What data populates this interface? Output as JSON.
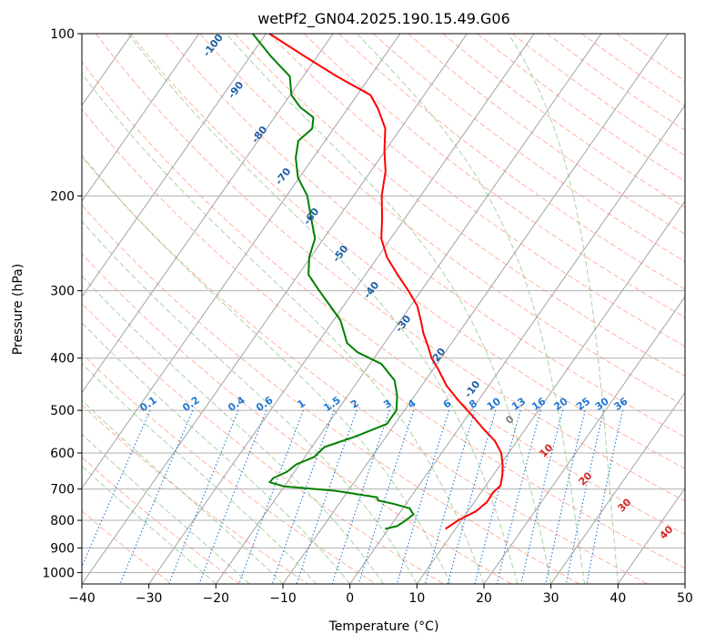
{
  "chart_data": {
    "type": "skew-t",
    "title": "wetPf2_GN04.2025.190.15.49.G06",
    "xlabel": "Temperature (°C)",
    "ylabel": "Pressure (hPa)",
    "xlim": [
      -40,
      50
    ],
    "ylim": [
      1050,
      100
    ],
    "y_scale": "log",
    "grid": true,
    "x_ticks": [
      "−40",
      "−30",
      "−20",
      "−10",
      "0",
      "10",
      "20",
      "30",
      "40",
      "50"
    ],
    "x_tick_values": [
      -40,
      -30,
      -20,
      -10,
      0,
      10,
      20,
      30,
      40,
      50
    ],
    "y_ticks": [
      "100",
      "200",
      "300",
      "400",
      "500",
      "600",
      "700",
      "800",
      "900",
      "1000"
    ],
    "y_tick_values": [
      100,
      200,
      300,
      400,
      500,
      600,
      700,
      800,
      900,
      1000
    ],
    "colors": {
      "temperature": "#ff0000",
      "dewpoint": "#008000",
      "isotherm": "#9a9a9a",
      "dry_adiabat": "#ff9a80",
      "moist_adiabat": "#7fc37f",
      "mixing_ratio": "#1f77d4",
      "lcl_label": "#1f5fa8",
      "theta_label": "#d62728"
    },
    "series": [
      {
        "kind": "temperature",
        "points": [
          {
            "p": 830,
            "t": 8.5
          },
          {
            "p": 800,
            "t": 9.5
          },
          {
            "p": 770,
            "t": 11.2
          },
          {
            "p": 740,
            "t": 11.9
          },
          {
            "p": 710,
            "t": 11.8
          },
          {
            "p": 690,
            "t": 12.2
          },
          {
            "p": 660,
            "t": 11.4
          },
          {
            "p": 630,
            "t": 10.3
          },
          {
            "p": 600,
            "t": 8.9
          },
          {
            "p": 570,
            "t": 6.7
          },
          {
            "p": 540,
            "t": 3.6
          },
          {
            "p": 510,
            "t": 0.5
          },
          {
            "p": 480,
            "t": -2.9
          },
          {
            "p": 450,
            "t": -6.3
          },
          {
            "p": 420,
            "t": -9.2
          },
          {
            "p": 400,
            "t": -11.4
          },
          {
            "p": 380,
            "t": -13.2
          },
          {
            "p": 360,
            "t": -15.2
          },
          {
            "p": 340,
            "t": -17.0
          },
          {
            "p": 320,
            "t": -19.0
          },
          {
            "p": 300,
            "t": -21.9
          },
          {
            "p": 280,
            "t": -25.2
          },
          {
            "p": 260,
            "t": -28.6
          },
          {
            "p": 240,
            "t": -31.4
          },
          {
            "p": 220,
            "t": -33.4
          },
          {
            "p": 200,
            "t": -35.8
          },
          {
            "p": 180,
            "t": -37.8
          },
          {
            "p": 165,
            "t": -40.1
          },
          {
            "p": 150,
            "t": -42.3
          },
          {
            "p": 138,
            "t": -45.4
          },
          {
            "p": 130,
            "t": -48.0
          },
          {
            "p": 120,
            "t": -55.0
          },
          {
            "p": 110,
            "t": -62.0
          },
          {
            "p": 100,
            "t": -69.5
          }
        ]
      },
      {
        "kind": "dewpoint",
        "points": [
          {
            "p": 830,
            "t": -0.5
          },
          {
            "p": 820,
            "t": 1.0
          },
          {
            "p": 800,
            "t": 1.7
          },
          {
            "p": 780,
            "t": 2.2
          },
          {
            "p": 760,
            "t": 1.0
          },
          {
            "p": 745,
            "t": -2.0
          },
          {
            "p": 735,
            "t": -4.5
          },
          {
            "p": 725,
            "t": -5.0
          },
          {
            "p": 705,
            "t": -12.0
          },
          {
            "p": 692,
            "t": -20.0
          },
          {
            "p": 680,
            "t": -22.6
          },
          {
            "p": 668,
            "t": -22.5
          },
          {
            "p": 650,
            "t": -21.1
          },
          {
            "p": 630,
            "t": -20.5
          },
          {
            "p": 610,
            "t": -18.6
          },
          {
            "p": 585,
            "t": -18.1
          },
          {
            "p": 560,
            "t": -14.7
          },
          {
            "p": 530,
            "t": -11.2
          },
          {
            "p": 500,
            "t": -11.2
          },
          {
            "p": 470,
            "t": -12.6
          },
          {
            "p": 440,
            "t": -14.6
          },
          {
            "p": 410,
            "t": -18.3
          },
          {
            "p": 390,
            "t": -23.1
          },
          {
            "p": 375,
            "t": -25.6
          },
          {
            "p": 360,
            "t": -27.0
          },
          {
            "p": 340,
            "t": -29.0
          },
          {
            "p": 320,
            "t": -32.0
          },
          {
            "p": 300,
            "t": -35.2
          },
          {
            "p": 280,
            "t": -38.5
          },
          {
            "p": 260,
            "t": -40.2
          },
          {
            "p": 240,
            "t": -41.3
          },
          {
            "p": 220,
            "t": -44.0
          },
          {
            "p": 200,
            "t": -46.9
          },
          {
            "p": 185,
            "t": -50.2
          },
          {
            "p": 170,
            "t": -52.6
          },
          {
            "p": 158,
            "t": -54.0
          },
          {
            "p": 150,
            "t": -53.2
          },
          {
            "p": 143,
            "t": -54.2
          },
          {
            "p": 137,
            "t": -57.2
          },
          {
            "p": 130,
            "t": -59.8
          },
          {
            "p": 120,
            "t": -62.0
          },
          {
            "p": 110,
            "t": -67.0
          },
          {
            "p": 100,
            "t": -72.0
          }
        ]
      }
    ],
    "lcl_temperature_labels": [
      "-100",
      "-90",
      "-80",
      "-70",
      "-60",
      "-50",
      "-40",
      "-30",
      "-20",
      "-10"
    ],
    "mixing_ratio_labels": [
      "0.1",
      "0.2",
      "0.4",
      "0.6",
      "1",
      "1.5",
      "2",
      "3",
      "4",
      "6",
      "8",
      "10",
      "13",
      "16",
      "20",
      "25",
      "30",
      "36"
    ],
    "theta_labels": [
      "0",
      "10",
      "20",
      "30",
      "40"
    ]
  }
}
